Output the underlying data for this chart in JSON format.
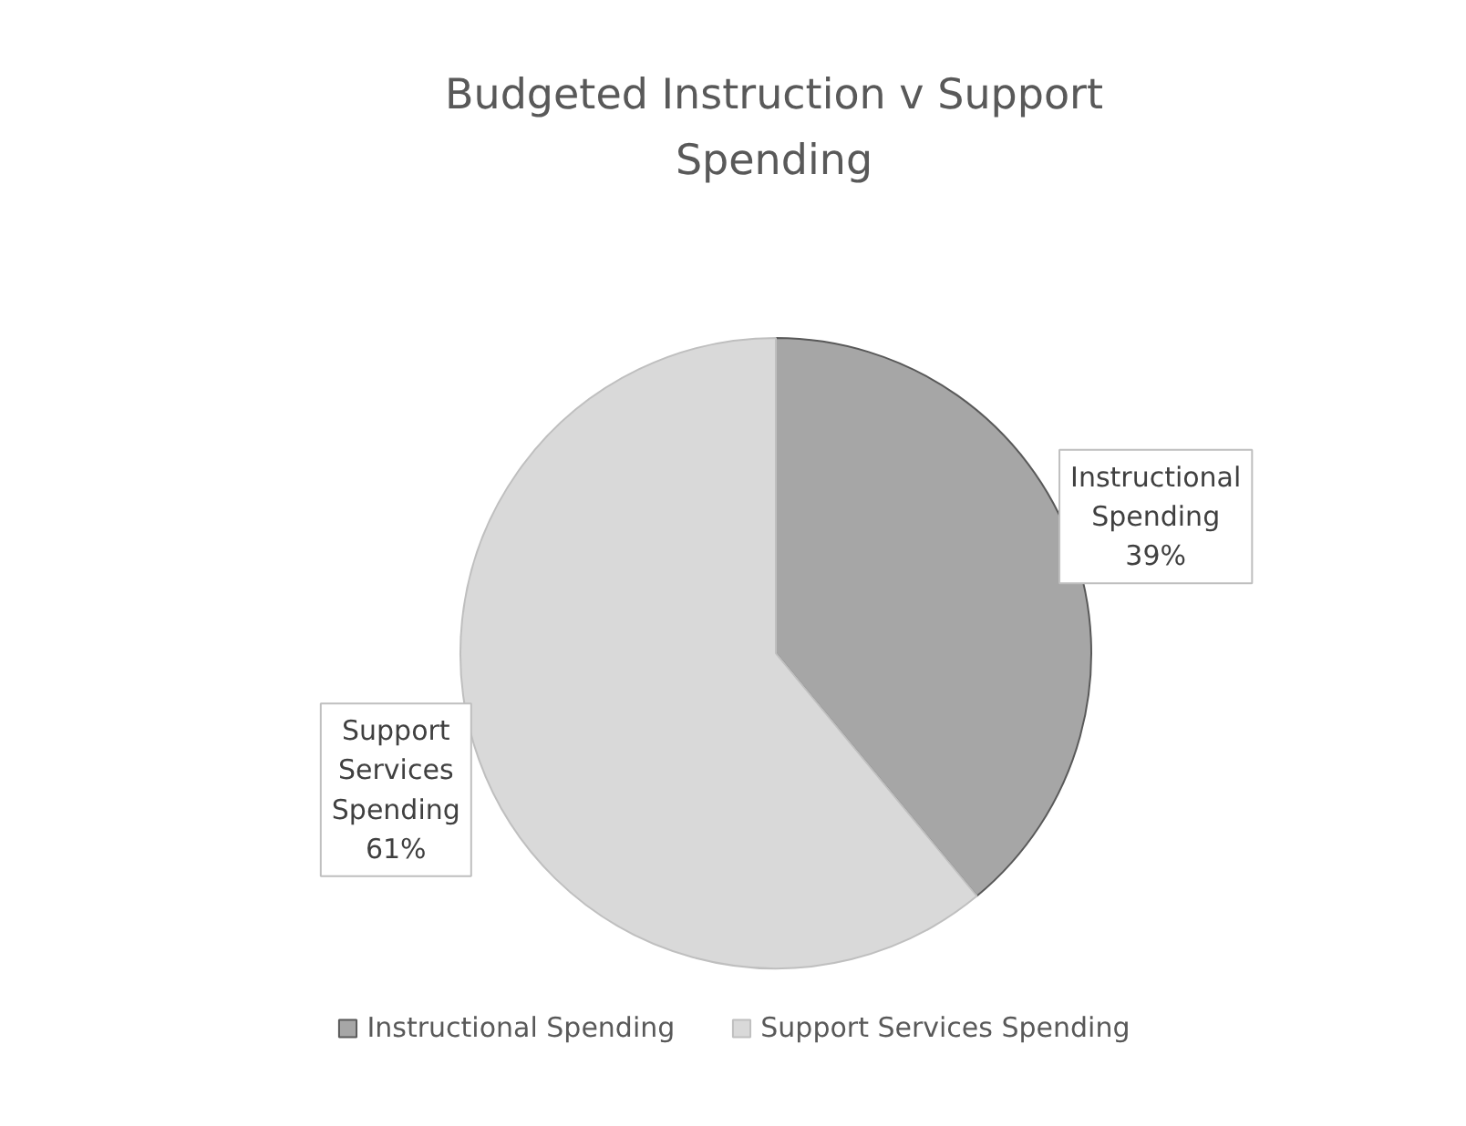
{
  "chart_data": {
    "type": "pie",
    "title": "Budgeted Instruction v Support Spending",
    "categories": [
      "Instructional Spending",
      "Support Services Spending"
    ],
    "values": [
      39,
      61
    ],
    "colors": [
      "#a6a6a6",
      "#d9d9d9"
    ],
    "value_labels": [
      "39%",
      "61%"
    ],
    "legend": "bottom"
  }
}
